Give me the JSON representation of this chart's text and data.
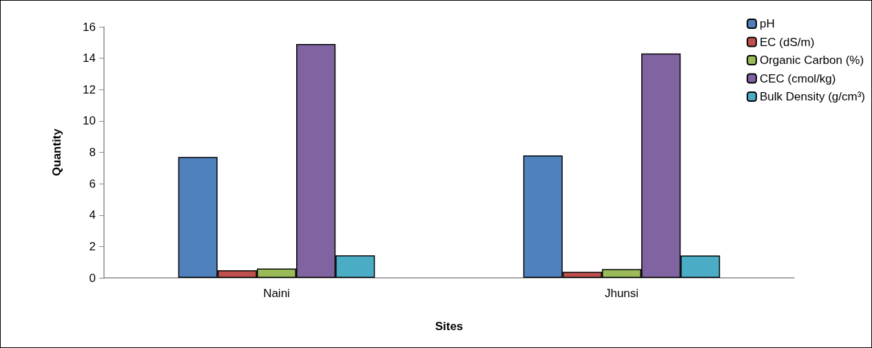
{
  "chart_data": {
    "type": "bar",
    "xlabel": "Sites",
    "ylabel": "Quantity",
    "categories": [
      "Naini",
      "Jhunsi"
    ],
    "series": [
      {
        "name": "pH",
        "color": "#4f81bd",
        "values": [
          7.7,
          7.8
        ]
      },
      {
        "name": "EC (dS/m)",
        "color": "#c0504d",
        "values": [
          0.48,
          0.38
        ]
      },
      {
        "name": "Organic Carbon (%)",
        "color": "#9bbb59",
        "values": [
          0.59,
          0.56
        ]
      },
      {
        "name": "CEC (cmol/kg)",
        "color": "#8064a2",
        "values": [
          14.9,
          14.3
        ]
      },
      {
        "name": "Bulk Density (g/cm³)",
        "color": "#4bacc6",
        "values": [
          1.44,
          1.42
        ]
      }
    ],
    "ylim": [
      0,
      16
    ],
    "yticks": [
      0,
      2,
      4,
      6,
      8,
      10,
      12,
      14,
      16
    ],
    "grid": false,
    "legend": "top right"
  }
}
